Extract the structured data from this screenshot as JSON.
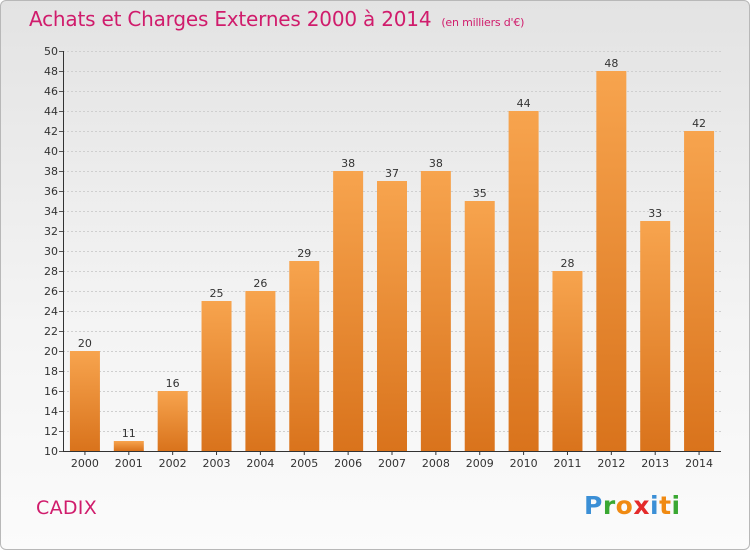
{
  "title": "Achats et Charges Externes 2000 à 2014",
  "unit": "(en milliers d'€)",
  "commune": "CADIX",
  "logo": {
    "text": "Proxiti",
    "letters": [
      {
        "ch": "P",
        "color": "#3b8fd6"
      },
      {
        "ch": "r",
        "color": "#3aa832"
      },
      {
        "ch": "o",
        "color": "#f08a12"
      },
      {
        "ch": "x",
        "color": "#e42a2a"
      },
      {
        "ch": "i",
        "color": "#3b8fd6"
      },
      {
        "ch": "t",
        "color": "#f08a12"
      },
      {
        "ch": "i",
        "color": "#3aa832"
      }
    ]
  },
  "colors": {
    "title": "#d01c6c",
    "bar_light": "#f7a44e",
    "bar_dark": "#d9731c",
    "grid": "#cfcfcf"
  },
  "chart_data": {
    "type": "bar",
    "title": "Achats et Charges Externes 2000 à 2014",
    "subtitle": "(en milliers d'€)",
    "xlabel": "",
    "ylabel": "",
    "categories": [
      "2000",
      "2001",
      "2002",
      "2003",
      "2004",
      "2005",
      "2006",
      "2007",
      "2008",
      "2009",
      "2010",
      "2011",
      "2012",
      "2013",
      "2014"
    ],
    "values": [
      20,
      11,
      16,
      25,
      26,
      29,
      38,
      37,
      38,
      35,
      44,
      28,
      48,
      33,
      42
    ],
    "data_labels": [
      "20",
      "11",
      "16",
      "25",
      "26",
      "29",
      "38",
      "37",
      "38",
      "35",
      "44",
      "28",
      "48",
      "33",
      "42"
    ],
    "ylim": [
      10,
      50
    ],
    "yticks": [
      10,
      12,
      14,
      16,
      18,
      20,
      22,
      24,
      26,
      28,
      30,
      32,
      34,
      36,
      38,
      40,
      42,
      44,
      46,
      48,
      50
    ],
    "grid": true,
    "legend": "none"
  }
}
